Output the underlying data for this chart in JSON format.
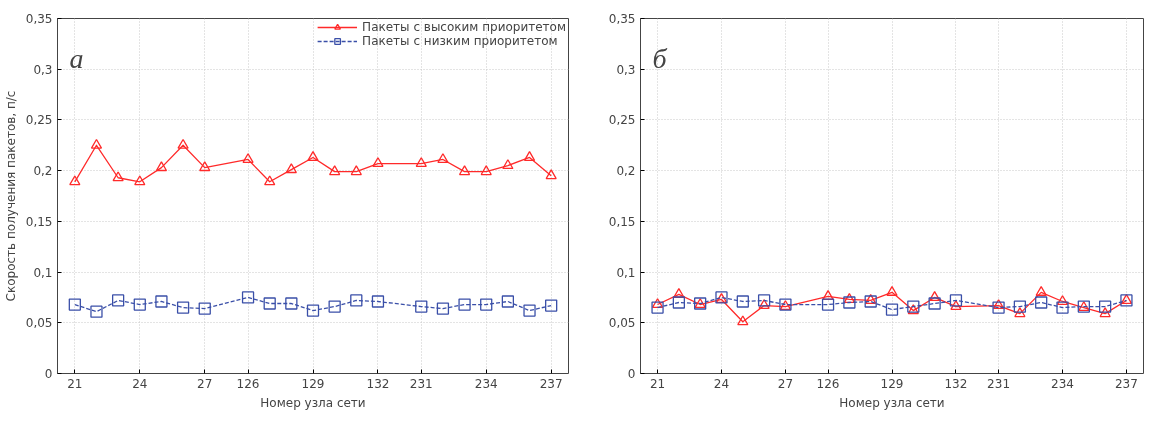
{
  "chart_data": [
    {
      "type": "line",
      "annotations": [
        "а"
      ],
      "xlabel": "Номер узла сети",
      "ylabel": "Скорость получения пакетов, п/с",
      "categories": [
        "21",
        null,
        null,
        "24",
        null,
        null,
        "27",
        null,
        "126",
        null,
        null,
        "129",
        null,
        null,
        "132",
        null,
        "231",
        null,
        null,
        "234",
        null,
        null,
        "237"
      ],
      "series": [
        {
          "name": "Пакеты с высоким приоритетом",
          "color": "#ff2a2a",
          "marker": "triangle",
          "line_style": "solid",
          "values": [
            0.189,
            0.225,
            0.193,
            0.189,
            0.203,
            0.225,
            0.203,
            null,
            0.211,
            0.189,
            0.201,
            0.213,
            0.199,
            0.199,
            0.207,
            null,
            0.207,
            0.211,
            0.199,
            0.199,
            0.205,
            0.213,
            0.195
          ]
        },
        {
          "name": "Пакеты с низким приоритетом",
          "color": "#3a4fa8",
          "marker": "square",
          "line_style": "dashed",
          "values": [
            0.068,
            0.061,
            0.072,
            0.068,
            0.071,
            0.065,
            0.064,
            null,
            0.075,
            0.069,
            0.069,
            0.062,
            0.066,
            0.072,
            0.071,
            null,
            0.066,
            0.064,
            0.068,
            0.068,
            0.071,
            0.062,
            0.067
          ]
        }
      ],
      "ylim": [
        0,
        0.35
      ],
      "yticks": [
        0,
        {
          "value": 0.05,
          "label": "0,05"
        },
        {
          "value": 0.1,
          "label": "0,1"
        },
        {
          "value": 0.15,
          "label": "0,15"
        },
        {
          "value": 0.2,
          "label": "0,2"
        },
        {
          "value": 0.25,
          "label": "0,25"
        },
        {
          "value": 0.3,
          "label": "0,3"
        },
        {
          "value": 0.35,
          "label": "0,35"
        }
      ],
      "grid": true,
      "legend": "top right"
    },
    {
      "type": "line",
      "annotations": [
        "б"
      ],
      "xlabel": "Номер узла сети",
      "categories": [
        "21",
        null,
        null,
        "24",
        null,
        null,
        "27",
        null,
        "126",
        null,
        null,
        "129",
        null,
        null,
        "132",
        null,
        "231",
        null,
        null,
        "234",
        null,
        null,
        "237"
      ],
      "series": [
        {
          "color": "#ff2a2a",
          "marker": "triangle",
          "line_style": "solid",
          "values": [
            0.068,
            0.078,
            0.068,
            0.073,
            0.051,
            0.067,
            0.066,
            null,
            0.076,
            0.073,
            0.072,
            0.08,
            0.062,
            0.075,
            0.066,
            null,
            0.067,
            0.059,
            0.08,
            0.071,
            0.065,
            0.059,
            0.072
          ]
        },
        {
          "color": "#3a4fa8",
          "marker": "square",
          "line_style": "dashed",
          "values": [
            0.065,
            0.07,
            0.069,
            0.075,
            0.071,
            0.072,
            0.068,
            null,
            0.068,
            0.07,
            0.071,
            0.063,
            0.066,
            0.069,
            0.072,
            null,
            0.065,
            0.066,
            0.07,
            0.065,
            0.066,
            0.066,
            0.072
          ]
        }
      ],
      "ylim": [
        0,
        0.35
      ],
      "yticks": [
        0,
        {
          "value": 0.05,
          "label": "0,05"
        },
        {
          "value": 0.1,
          "label": "0,1"
        },
        {
          "value": 0.15,
          "label": "0,15"
        },
        {
          "value": 0.2,
          "label": "0,2"
        },
        {
          "value": 0.25,
          "label": "0,25"
        },
        {
          "value": 0.3,
          "label": "0,3"
        },
        {
          "value": 0.35,
          "label": "0,35"
        }
      ],
      "grid": true
    }
  ]
}
